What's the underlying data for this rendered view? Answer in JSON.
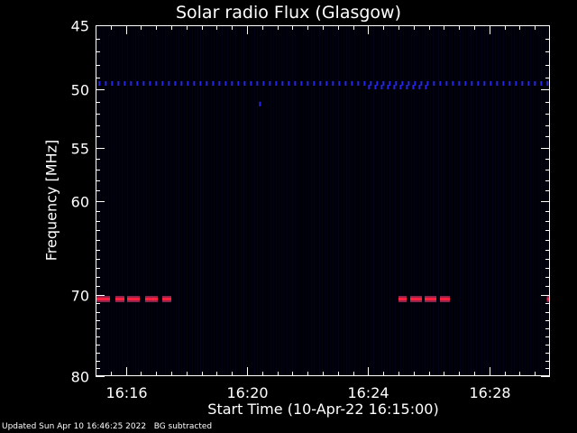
{
  "chart_data": {
    "type": "heatmap",
    "title": "Solar radio Flux (Glasgow)",
    "xlabel": "Start Time (10-Apr-22 16:15:00)",
    "ylabel": "Frequency [MHz]",
    "x_ticks": [
      "16:16",
      "16:20",
      "16:24",
      "16:28"
    ],
    "x_tick_minutes": [
      1,
      5,
      9,
      13
    ],
    "x_range_minutes": [
      0,
      15
    ],
    "y_ticks": [
      45,
      50,
      55,
      60,
      70,
      80
    ],
    "y_range": [
      45,
      80
    ],
    "y_axis_inverted": true,
    "y_scale": "log",
    "colors": {
      "background": "#000000",
      "axes": "#ffffff",
      "interference_blue": "#2a2aff",
      "burst_red": "#ff2040",
      "burst_pink": "#ff4080"
    },
    "features": [
      {
        "name": "interference",
        "frequency_mhz": 49.5,
        "start_minute": 0.1,
        "end_minute": 15,
        "intensity": "low"
      },
      {
        "name": "interference",
        "frequency_mhz": 49.8,
        "start_minute": 9.0,
        "end_minute": 11.0,
        "intensity": "low"
      },
      {
        "name": "interference",
        "frequency_mhz": 51.2,
        "start_minute": 5.4,
        "end_minute": 5.5,
        "intensity": "low"
      },
      {
        "name": "interference",
        "frequency_mhz": 70.5,
        "start_minute": 0.0,
        "end_minute": 2.5,
        "intensity": "high"
      },
      {
        "name": "interference",
        "frequency_mhz": 70.5,
        "start_minute": 10.0,
        "end_minute": 11.8,
        "intensity": "high"
      },
      {
        "name": "interference",
        "frequency_mhz": 70.5,
        "start_minute": 14.9,
        "end_minute": 15.0,
        "intensity": "high"
      }
    ]
  },
  "footer": {
    "updated": "Updated Sun Apr 10 16:46:25 2022",
    "note": "BG subtracted"
  }
}
